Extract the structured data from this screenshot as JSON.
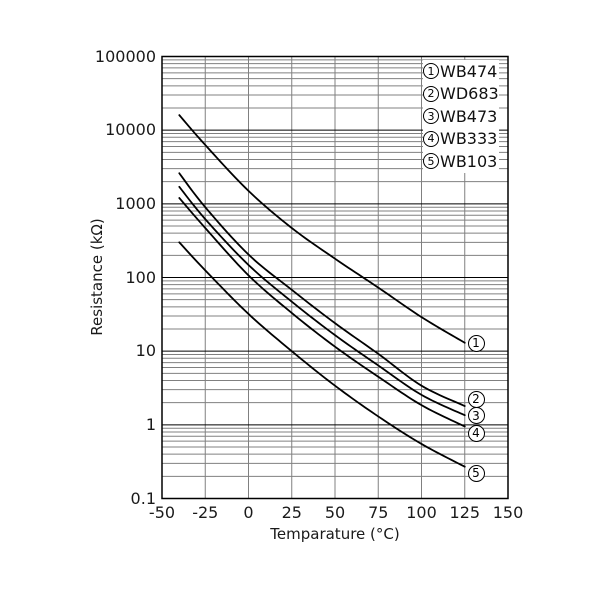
{
  "figure_title": "",
  "axes": {
    "x_title": "Temparature (°C)",
    "y_title": "Resistance (kΩ)",
    "y_ticks": [
      "100000",
      "10000",
      "1000",
      "100",
      "10",
      "1",
      "0.1"
    ],
    "x_ticks": [
      "-50",
      "-25",
      "0",
      "25",
      "50",
      "75",
      "100",
      "125",
      "150"
    ]
  },
  "chart": {
    "legend": [
      {
        "num": "1",
        "label": "WB474"
      },
      {
        "num": "2",
        "label": "WD683"
      },
      {
        "num": "3",
        "label": "WB473"
      },
      {
        "num": "4",
        "label": "WB333"
      },
      {
        "num": "5",
        "label": "WB103"
      }
    ]
  },
  "chart_data": {
    "type": "line",
    "title": "",
    "xlabel": "Temparature (°C)",
    "ylabel": "Resistance (kΩ)",
    "xlim": [
      -50,
      150
    ],
    "ylim": [
      0.1,
      100000
    ],
    "yscale": "log",
    "xticks": [
      -50,
      -25,
      0,
      25,
      50,
      75,
      100,
      125,
      150
    ],
    "grid": true,
    "legend_position": "top-right-inside",
    "x": [
      -40,
      -25,
      0,
      25,
      50,
      75,
      100,
      125
    ],
    "series": [
      {
        "name": "WB474",
        "marker_num": "1",
        "values": [
          16000,
          6300,
          1500,
          470,
          180,
          73,
          29,
          13
        ]
      },
      {
        "name": "WD683",
        "marker_num": "2",
        "values": [
          2600,
          900,
          205,
          68,
          24,
          9.2,
          3.4,
          1.8
        ]
      },
      {
        "name": "WB473",
        "marker_num": "3",
        "values": [
          1700,
          620,
          148,
          47,
          16.5,
          6.4,
          2.55,
          1.35
        ]
      },
      {
        "name": "WB333",
        "marker_num": "4",
        "values": [
          1200,
          470,
          107,
          33,
          11.5,
          4.5,
          1.85,
          0.95
        ]
      },
      {
        "name": "WB103",
        "marker_num": "5",
        "values": [
          300,
          125,
          32,
          10,
          3.4,
          1.3,
          0.55,
          0.27
        ]
      }
    ]
  },
  "colors": {
    "curve": "#000000",
    "grid_minor": "#808080",
    "grid_major": "#000000",
    "frame": "#000000",
    "background": "#ffffff"
  }
}
